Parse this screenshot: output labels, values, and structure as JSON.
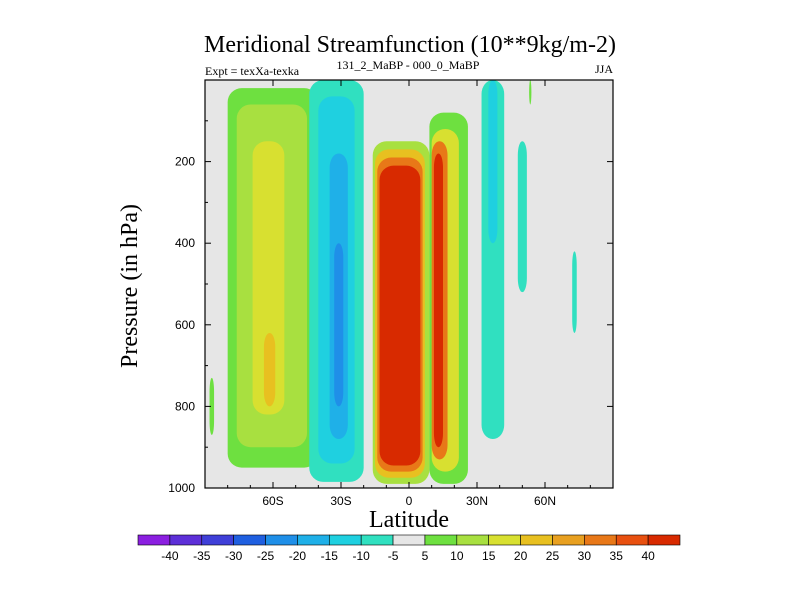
{
  "chart_data": {
    "type": "heatmap",
    "title": "Meridional Streamfunction (10**9kg/m-2)",
    "experiment_label": "Expt = texXa-texka",
    "subtitle": "131_2_MaBP - 000_0_MaBP",
    "season": "JJA",
    "xlabel": "Latitude",
    "ylabel": "Pressure (in hPa)",
    "xlim": [
      -90,
      90
    ],
    "ylim": [
      1000,
      0
    ],
    "x_ticks": [
      {
        "value": -60,
        "label": "60S"
      },
      {
        "value": -30,
        "label": "30S"
      },
      {
        "value": 0,
        "label": "0"
      },
      {
        "value": 30,
        "label": "30N"
      },
      {
        "value": 60,
        "label": "60N"
      }
    ],
    "y_ticks": [
      {
        "value": 200,
        "label": "200"
      },
      {
        "value": 400,
        "label": "400"
      },
      {
        "value": 600,
        "label": "600"
      },
      {
        "value": 800,
        "label": "800"
      },
      {
        "value": 1000,
        "label": "1000"
      }
    ],
    "background_color": "#e6e6e6",
    "colorbar": {
      "boundaries": [
        "-40",
        "-35",
        "-30",
        "-25",
        "-20",
        "-15",
        "-10",
        "-5",
        "5",
        "10",
        "15",
        "20",
        "25",
        "30",
        "35",
        "40"
      ],
      "colors": [
        "#8b1fe0",
        "#5d2fd8",
        "#3f3fd8",
        "#1f5fe0",
        "#1f8fe8",
        "#1fb0e8",
        "#1fd0e0",
        "#30e0c0",
        "#e6e6e6",
        "#6ee040",
        "#a8e040",
        "#d8e030",
        "#e8c020",
        "#e8a020",
        "#e87818",
        "#e85010",
        "#d82a00"
      ]
    },
    "cells": [
      {
        "name": "sh-lobe-outer",
        "lat": [
          -80,
          -40
        ],
        "p": [
          20,
          950
        ],
        "value": 10,
        "color": "#6ee040"
      },
      {
        "name": "sh-lobe-mid",
        "lat": [
          -76,
          -45
        ],
        "p": [
          60,
          900
        ],
        "value": 15,
        "color": "#a8e040"
      },
      {
        "name": "sh-lobe-core",
        "lat": [
          -69,
          -55
        ],
        "p": [
          150,
          820
        ],
        "value": 20,
        "color": "#d8e030"
      },
      {
        "name": "sh-lobe-max",
        "lat": [
          -64,
          -59
        ],
        "p": [
          620,
          800
        ],
        "value": 25,
        "color": "#e8c020"
      },
      {
        "name": "sh-neg-outer",
        "lat": [
          -44,
          -20
        ],
        "p": [
          0,
          985
        ],
        "value": -10,
        "color": "#30e0c0"
      },
      {
        "name": "sh-neg-mid",
        "lat": [
          -40,
          -24
        ],
        "p": [
          40,
          940
        ],
        "value": -15,
        "color": "#1fd0e0"
      },
      {
        "name": "sh-neg-core",
        "lat": [
          -35,
          -27
        ],
        "p": [
          180,
          880
        ],
        "value": -20,
        "color": "#1fb0e8"
      },
      {
        "name": "sh-neg-max",
        "lat": [
          -33,
          -29
        ],
        "p": [
          400,
          800
        ],
        "value": -25,
        "color": "#1f8fe8"
      },
      {
        "name": "hadley-outer",
        "lat": [
          -16,
          9
        ],
        "p": [
          150,
          990
        ],
        "value": 15,
        "color": "#a8e040"
      },
      {
        "name": "hadley-mid",
        "lat": [
          -15,
          7
        ],
        "p": [
          170,
          975
        ],
        "value": 25,
        "color": "#e8c020"
      },
      {
        "name": "hadley-core",
        "lat": [
          -14,
          6
        ],
        "p": [
          190,
          960
        ],
        "value": 35,
        "color": "#e87818"
      },
      {
        "name": "hadley-max",
        "lat": [
          -13,
          5
        ],
        "p": [
          210,
          945
        ],
        "value": 40,
        "color": "#d82a00"
      },
      {
        "name": "nh-pos-outer",
        "lat": [
          9,
          26
        ],
        "p": [
          80,
          990
        ],
        "value": 10,
        "color": "#6ee040"
      },
      {
        "name": "nh-pos-mid",
        "lat": [
          10,
          22
        ],
        "p": [
          120,
          960
        ],
        "value": 20,
        "color": "#d8e030"
      },
      {
        "name": "nh-pos-core",
        "lat": [
          10,
          17
        ],
        "p": [
          150,
          930
        ],
        "value": 35,
        "color": "#e87818"
      },
      {
        "name": "nh-pos-max",
        "lat": [
          11,
          15
        ],
        "p": [
          180,
          900
        ],
        "value": 40,
        "color": "#d82a00"
      },
      {
        "name": "nh-neg-band",
        "lat": [
          32,
          42
        ],
        "p": [
          0,
          880
        ],
        "value": -10,
        "color": "#30e0c0"
      },
      {
        "name": "nh-neg-core",
        "lat": [
          35,
          39
        ],
        "p": [
          0,
          400
        ],
        "value": -15,
        "color": "#1fd0e0"
      },
      {
        "name": "nh-neg-patch",
        "lat": [
          48,
          52
        ],
        "p": [
          150,
          520
        ],
        "value": -10,
        "color": "#30e0c0"
      },
      {
        "name": "nh-neg-far",
        "lat": [
          72,
          74
        ],
        "p": [
          420,
          620
        ],
        "value": -10,
        "color": "#30e0c0"
      },
      {
        "name": "sh-edge-sliver",
        "lat": [
          -88,
          -86
        ],
        "p": [
          730,
          870
        ],
        "value": 10,
        "color": "#6ee040"
      },
      {
        "name": "nh-top-sliver",
        "lat": [
          53,
          54
        ],
        "p": [
          0,
          60
        ],
        "value": 10,
        "color": "#6ee040"
      }
    ]
  }
}
